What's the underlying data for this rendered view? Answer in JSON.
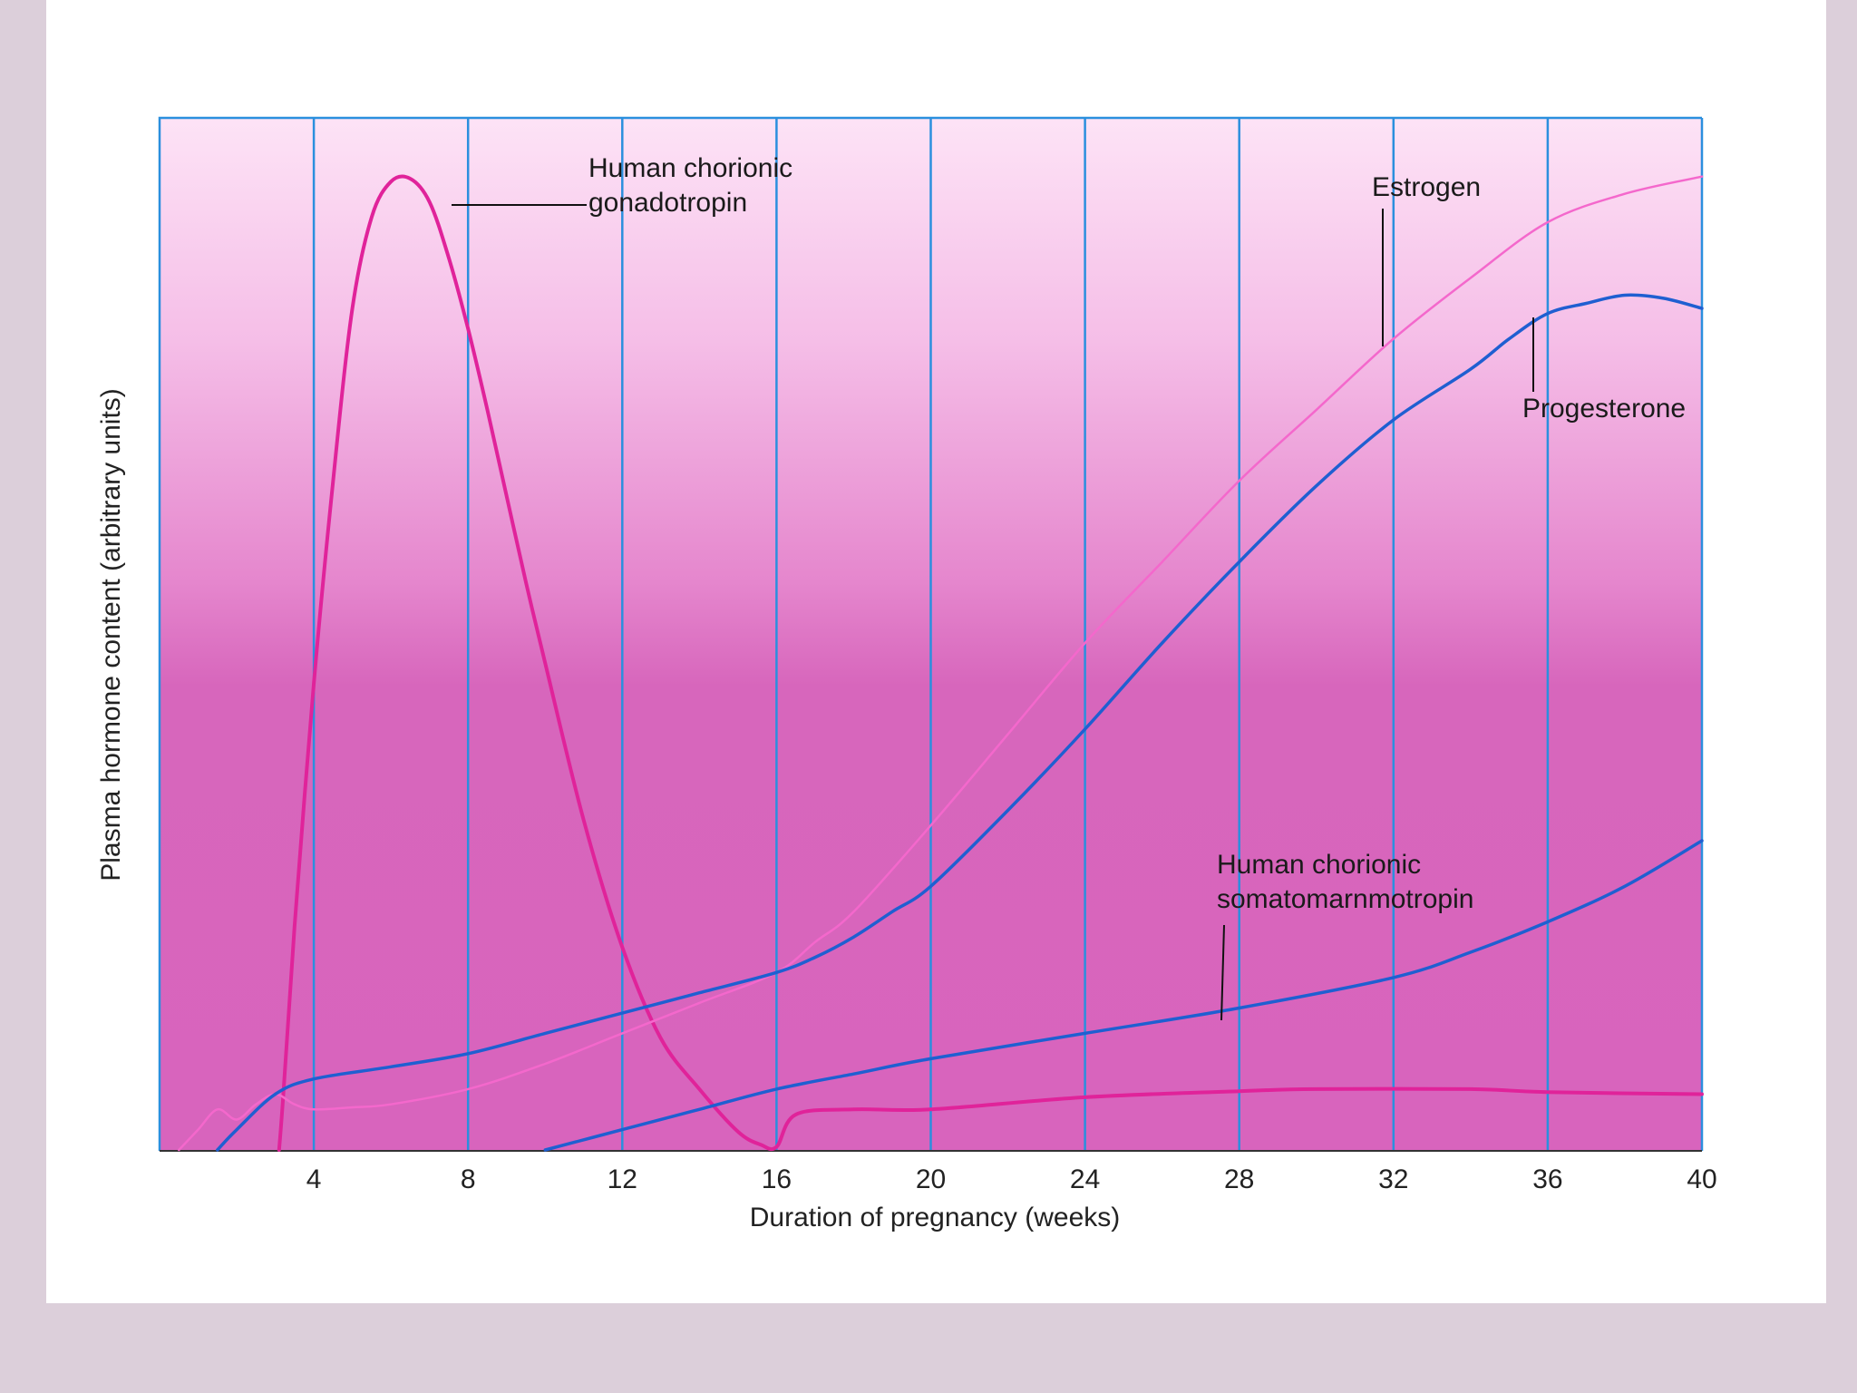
{
  "chart_data": {
    "type": "line",
    "title": "",
    "xlabel": "Duration of pregnancy (weeks)",
    "ylabel": "Plasma hormone content (arbitrary units)",
    "xlim": [
      0,
      40
    ],
    "ylim": [
      0,
      100
    ],
    "grid": "vertical lines every 4 weeks",
    "x_ticks": [
      "4",
      "8",
      "12",
      "16",
      "20",
      "24",
      "28",
      "32",
      "36",
      "40"
    ],
    "colors": {
      "background_top": "#fbd9f3",
      "background_bottom": "#d766bc",
      "grid": "#2b8fde",
      "magenta_curve": "#e0239a",
      "pink_curve": "#f468cc",
      "blue_curve": "#1f5fd1"
    },
    "series": [
      {
        "name": "Human chorionic gonadotropin",
        "label_lines": [
          "Human chorionic",
          "gonadotropin"
        ],
        "color": "magenta_curve",
        "x": [
          3.1,
          3.2,
          3.5,
          4.0,
          4.5,
          5.0,
          5.5,
          6.0,
          6.5,
          7.0,
          7.5,
          8.0,
          8.5,
          9.0,
          9.5,
          10.0,
          11.0,
          12.0,
          13.0,
          14.0,
          15.0,
          15.6,
          16.0,
          16.5,
          18.0,
          20.0,
          24.0,
          28.0,
          30.0,
          34.0,
          36.0,
          40.0
        ],
        "y": [
          0,
          5,
          22,
          46,
          66,
          83,
          92,
          95.5,
          95.8,
          93.5,
          88,
          81,
          73,
          64.5,
          56,
          48,
          32.5,
          20,
          11,
          6,
          1.8,
          0.5,
          0.3,
          3.5,
          4.0,
          4.0,
          5.2,
          5.8,
          6.0,
          6.0,
          5.7,
          5.5
        ]
      },
      {
        "name": "Estrogen",
        "label_lines": [
          "Estrogen"
        ],
        "color": "pink_curve",
        "x": [
          0.5,
          1.0,
          1.5,
          2.0,
          2.5,
          3.0,
          3.5,
          4.0,
          5.0,
          6.0,
          8.0,
          10.0,
          12.0,
          14.0,
          16.0,
          17.0,
          18.0,
          20.0,
          22.0,
          24.0,
          26.0,
          28.0,
          30.0,
          32.0,
          34.0,
          36.0,
          38.0,
          40.0
        ],
        "y": [
          0,
          2,
          4,
          3,
          4.5,
          5.5,
          4.5,
          4.0,
          4.2,
          4.5,
          6.0,
          8.5,
          11.5,
          14.5,
          17.5,
          20.5,
          23.5,
          32,
          41,
          50,
          58,
          66,
          73,
          80,
          86,
          91.5,
          94.3,
          96
        ]
      },
      {
        "name": "Progesterone",
        "label_lines": [
          "Progesterone"
        ],
        "color": "blue_curve",
        "x": [
          1.5,
          2.0,
          3.0,
          4.0,
          6.0,
          8.0,
          10.0,
          12.0,
          14.0,
          16.0,
          17.0,
          18.0,
          19.0,
          20.0,
          22.0,
          24.0,
          26.0,
          28.0,
          30.0,
          32.0,
          34.0,
          35.0,
          36.0,
          37.0,
          38.0,
          39.0,
          40.0
        ],
        "y": [
          0,
          2,
          5.5,
          7.0,
          8.2,
          9.5,
          11.5,
          13.5,
          15.5,
          17.5,
          19,
          21,
          23.5,
          26,
          33.5,
          41.5,
          50,
          58,
          65.5,
          72,
          77,
          80,
          82.5,
          83.5,
          84.3,
          84,
          83
        ]
      },
      {
        "name": "Human chorionic somatomarnmotropin",
        "label_lines": [
          "Human chorionic",
          "somatomarnmotropin"
        ],
        "color": "blue_curve",
        "x": [
          10.0,
          12.0,
          14.0,
          16.0,
          18.0,
          20.0,
          24.0,
          28.0,
          32.0,
          34.0,
          36.0,
          38.0,
          40.0
        ],
        "y": [
          0,
          2.0,
          4.0,
          6.0,
          7.5,
          9.0,
          11.5,
          14.0,
          17.0,
          19.5,
          22.5,
          26.0,
          30.5
        ]
      }
    ]
  }
}
